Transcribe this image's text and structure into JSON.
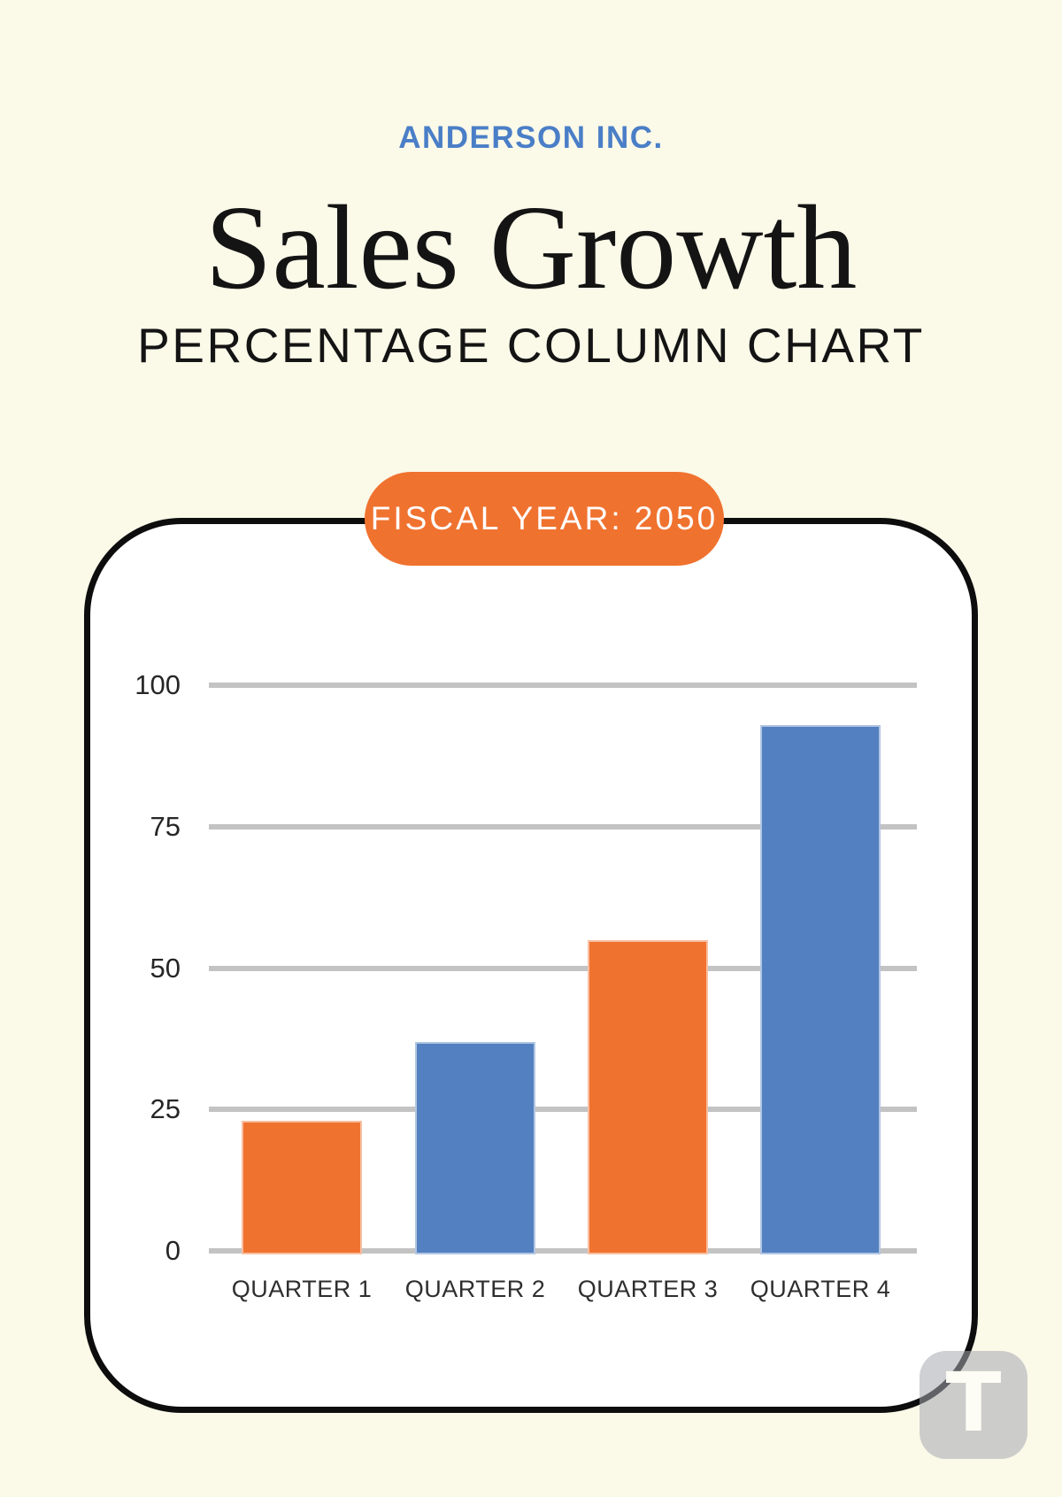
{
  "page": {
    "background_color": "#FBF9E8"
  },
  "header": {
    "company": "ANDERSON INC.",
    "title": "Sales Growth",
    "subtitle": "PERCENTAGE COLUMN CHART"
  },
  "badge": {
    "label": "FISCAL YEAR: 2050",
    "background_color": "#F0722F",
    "text_color": "#FFFFFF"
  },
  "chart_data": {
    "type": "bar",
    "title": "Sales Growth Percentage Column Chart",
    "categories": [
      "QUARTER 1",
      "QUARTER 2",
      "QUARTER 3",
      "QUARTER 4"
    ],
    "values": [
      23,
      37,
      55,
      93
    ],
    "bar_colors": [
      "#F0722F",
      "#5380C1",
      "#F0722F",
      "#5380C1"
    ],
    "xlabel": "",
    "ylabel": "",
    "ylim": [
      0,
      100
    ],
    "yticks": [
      0,
      25,
      50,
      75,
      100
    ],
    "grid": true,
    "gridline_color": "#C3C3C3",
    "legend": "none"
  },
  "colors": {
    "accent_orange": "#F0722F",
    "accent_blue": "#5380C1",
    "brand_blue": "#4A7EC7",
    "card_border": "#0D0D0D",
    "card_background": "#FFFFFF"
  },
  "watermark": {
    "letter": "T"
  }
}
